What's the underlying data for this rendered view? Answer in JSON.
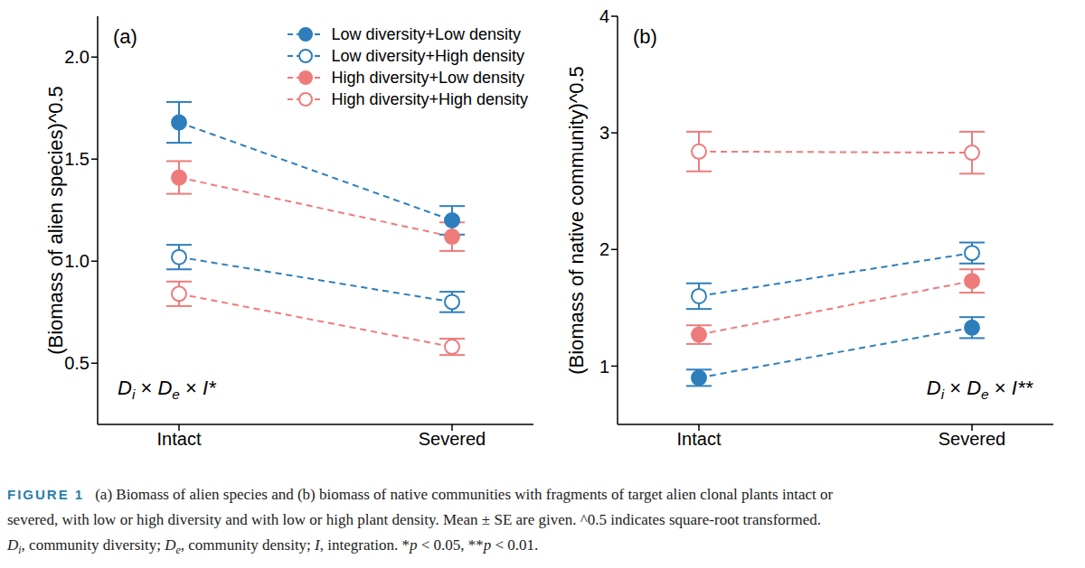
{
  "chart_data": [
    {
      "type": "line",
      "panel_label": "(a)",
      "y_label": "(Biomass of alien species)^0.5",
      "categories": [
        "Intact",
        "Severed"
      ],
      "ylim": [
        0.2,
        2.2
      ],
      "yticks": [
        0.5,
        {
          "value": 1.0,
          "label": "1.0"
        },
        1.5,
        {
          "value": 2.0,
          "label": "2.0"
        }
      ],
      "legend": "upper right",
      "annotation": [
        {
          "text": "D",
          "italic": true
        },
        {
          "text": "i",
          "italic": true,
          "sub": true
        },
        {
          "text": " × "
        },
        {
          "text": "D",
          "italic": true
        },
        {
          "text": "e",
          "italic": true,
          "sub": true
        },
        {
          "text": " × "
        },
        {
          "text": "I",
          "italic": true
        },
        {
          "text": "*",
          "italic": true
        }
      ],
      "series": [
        {
          "name": "Low diversity+Low density",
          "color": "#2e7ebc",
          "marker": "filled_circle",
          "line_style": "dashed",
          "values": [
            1.68,
            1.2
          ],
          "errors": [
            0.1,
            0.07
          ]
        },
        {
          "name": "Low diversity+High density",
          "color": "#2e7ebc",
          "marker": "open_circle",
          "line_style": "dashed",
          "values": [
            1.02,
            0.8
          ],
          "errors": [
            0.06,
            0.05
          ]
        },
        {
          "name": "High diversity+Low density",
          "color": "#ee7b7b",
          "marker": "filled_circle",
          "line_style": "dashed",
          "values": [
            1.41,
            1.12
          ],
          "errors": [
            0.08,
            0.07
          ]
        },
        {
          "name": "High diversity+High density",
          "color": "#ee7b7b",
          "marker": "open_circle",
          "line_style": "dashed",
          "values": [
            0.84,
            0.58
          ],
          "errors": [
            0.06,
            0.04
          ]
        }
      ]
    },
    {
      "type": "line",
      "panel_label": "(b)",
      "y_label": "(Biomass of native community)^0.5",
      "categories": [
        "Intact",
        "Severed"
      ],
      "ylim": [
        0.5,
        4
      ],
      "yticks": [
        1,
        2,
        3,
        4
      ],
      "annotation": [
        {
          "text": "D",
          "italic": true
        },
        {
          "text": "i",
          "italic": true,
          "sub": true
        },
        {
          "text": " × "
        },
        {
          "text": "D",
          "italic": true
        },
        {
          "text": "e",
          "italic": true,
          "sub": true
        },
        {
          "text": " × "
        },
        {
          "text": "I",
          "italic": true
        },
        {
          "text": "**",
          "italic": true
        }
      ],
      "series": [
        {
          "name": "Low diversity+Low density",
          "color": "#2e7ebc",
          "marker": "filled_circle",
          "line_style": "dashed",
          "values": [
            0.9,
            1.33
          ],
          "errors": [
            0.07,
            0.09
          ]
        },
        {
          "name": "Low diversity+High density",
          "color": "#2e7ebc",
          "marker": "open_circle",
          "line_style": "dashed",
          "values": [
            1.6,
            1.97
          ],
          "errors": [
            0.11,
            0.09
          ]
        },
        {
          "name": "High diversity+Low density",
          "color": "#ee7b7b",
          "marker": "filled_circle",
          "line_style": "dashed",
          "values": [
            1.27,
            1.73
          ],
          "errors": [
            0.08,
            0.1
          ]
        },
        {
          "name": "High diversity+High density",
          "color": "#ee7b7b",
          "marker": "open_circle",
          "line_style": "dashed",
          "values": [
            2.84,
            2.83
          ],
          "errors": [
            0.17,
            0.18
          ]
        }
      ]
    }
  ],
  "caption": {
    "label": "FIGURE 1",
    "lines": [
      [
        {
          "text": "(a) Biomass of alien species and (b) biomass of native communities with fragments of target alien clonal plants intact or"
        }
      ],
      [
        {
          "text": "severed, with low or high diversity and with low or high plant density. Mean ± SE are given. ^0.5 indicates square-root transformed."
        }
      ],
      [
        {
          "text": "D",
          "italic": true
        },
        {
          "text": "i",
          "italic": true,
          "sub": true
        },
        {
          "text": ", community diversity; "
        },
        {
          "text": "D",
          "italic": true
        },
        {
          "text": "e",
          "italic": true,
          "sub": true
        },
        {
          "text": ", community density; "
        },
        {
          "text": "I",
          "italic": true
        },
        {
          "text": ", integration. *"
        },
        {
          "text": "p",
          "italic": true
        },
        {
          "text": " < 0.05, **"
        },
        {
          "text": "p",
          "italic": true
        },
        {
          "text": " < 0.01."
        }
      ]
    ]
  }
}
